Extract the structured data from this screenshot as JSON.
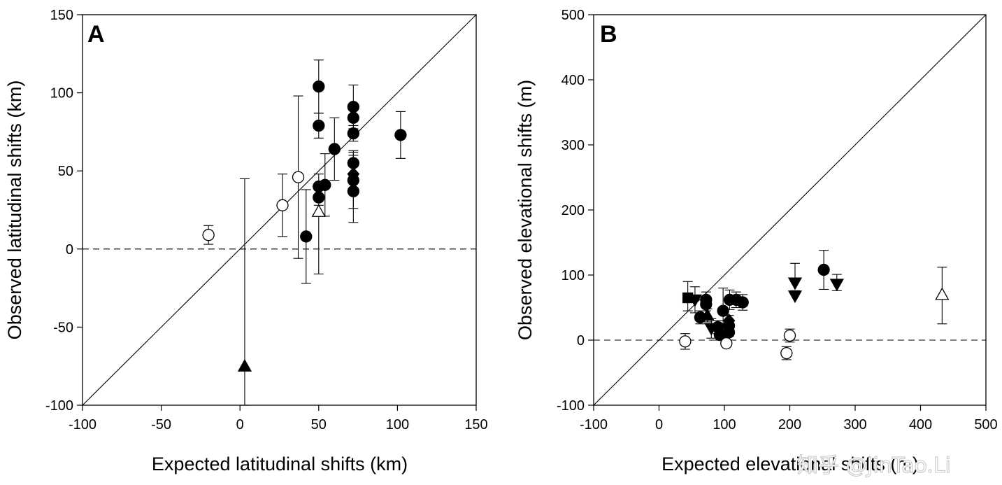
{
  "watermark": "知乎 @JinTao.Li",
  "chart_data": [
    {
      "type": "scatter",
      "panel_label": "A",
      "xlabel": "Expected latitudinal shifts (km)",
      "ylabel": "Observed latitudinal shifts (km)",
      "xlim": [
        -100,
        150
      ],
      "ylim": [
        -100,
        150
      ],
      "xticks": [
        -100,
        -50,
        0,
        50,
        100,
        150
      ],
      "yticks": [
        -100,
        -50,
        0,
        50,
        100,
        150
      ],
      "grid": false,
      "reference_lines": [
        {
          "type": "identity",
          "style": "solid"
        },
        {
          "type": "horizontal",
          "y": 0,
          "style": "dashed"
        }
      ],
      "marker_types": [
        "filled-circle",
        "open-circle",
        "filled-triangle-up",
        "open-triangle-up",
        "filled-diamond"
      ],
      "points": [
        {
          "x": -20,
          "y": 9,
          "marker": "open-circle",
          "err_up": 6,
          "err_down": 6
        },
        {
          "x": 27,
          "y": 28,
          "marker": "open-circle",
          "err_up": 20,
          "err_down": 20
        },
        {
          "x": 37,
          "y": 46,
          "marker": "open-circle",
          "err_up": 52,
          "err_down": 52
        },
        {
          "x": 3,
          "y": -75,
          "marker": "filled-triangle-up",
          "err_up": 120,
          "err_down": 25
        },
        {
          "x": 42,
          "y": 8,
          "marker": "filled-circle",
          "err_up": 30,
          "err_down": 30
        },
        {
          "x": 50,
          "y": 104,
          "marker": "filled-circle",
          "err_up": 17,
          "err_down": 17
        },
        {
          "x": 50,
          "y": 79,
          "marker": "filled-circle",
          "err_up": 8,
          "err_down": 8
        },
        {
          "x": 50,
          "y": 40,
          "marker": "filled-circle",
          "err_up": 8,
          "err_down": 8
        },
        {
          "x": 50,
          "y": 33,
          "marker": "filled-circle",
          "err_up": 5,
          "err_down": 5
        },
        {
          "x": 50,
          "y": 24,
          "marker": "open-triangle-up",
          "err_up": 0,
          "err_down": 40
        },
        {
          "x": 54,
          "y": 41,
          "marker": "filled-circle",
          "err_up": 20,
          "err_down": 20
        },
        {
          "x": 60,
          "y": 64,
          "marker": "filled-circle",
          "err_up": 20,
          "err_down": 20
        },
        {
          "x": 72,
          "y": 91,
          "marker": "filled-circle",
          "err_up": 14,
          "err_down": 14
        },
        {
          "x": 72,
          "y": 84,
          "marker": "filled-circle",
          "err_up": 5,
          "err_down": 5
        },
        {
          "x": 72,
          "y": 74,
          "marker": "filled-circle",
          "err_up": 5,
          "err_down": 5
        },
        {
          "x": 72,
          "y": 55,
          "marker": "filled-circle",
          "err_up": 8,
          "err_down": 8
        },
        {
          "x": 72,
          "y": 48,
          "marker": "filled-diamond",
          "err_up": 12,
          "err_down": 12
        },
        {
          "x": 72,
          "y": 44,
          "marker": "filled-circle",
          "err_up": 18,
          "err_down": 18
        },
        {
          "x": 72,
          "y": 37,
          "marker": "filled-circle",
          "err_up": 10,
          "err_down": 20
        },
        {
          "x": 102,
          "y": 73,
          "marker": "filled-circle",
          "err_up": 15,
          "err_down": 15
        }
      ]
    },
    {
      "type": "scatter",
      "panel_label": "B",
      "xlabel": "Expected elevational shifts (m)",
      "ylabel": "Observed elevational shifts (m)",
      "xlim": [
        -100,
        500
      ],
      "ylim": [
        -100,
        500
      ],
      "xticks": [
        -100,
        0,
        100,
        200,
        300,
        400,
        500
      ],
      "yticks": [
        -100,
        0,
        100,
        200,
        300,
        400,
        500
      ],
      "grid": false,
      "reference_lines": [
        {
          "type": "identity",
          "style": "solid"
        },
        {
          "type": "horizontal",
          "y": 0,
          "style": "dashed"
        }
      ],
      "marker_types": [
        "filled-circle",
        "open-circle",
        "filled-triangle-down",
        "filled-triangle-up",
        "open-triangle-up",
        "filled-square",
        "filled-diamond"
      ],
      "points": [
        {
          "x": 40,
          "y": -2,
          "marker": "open-circle",
          "err_up": 12,
          "err_down": 12
        },
        {
          "x": 44,
          "y": 65,
          "marker": "filled-square",
          "err_up": 25,
          "err_down": 20
        },
        {
          "x": 55,
          "y": 62,
          "marker": "filled-triangle-down",
          "err_up": 20,
          "err_down": 20
        },
        {
          "x": 63,
          "y": 35,
          "marker": "filled-circle",
          "err_up": 10,
          "err_down": 10
        },
        {
          "x": 72,
          "y": 62,
          "marker": "filled-circle",
          "err_up": 12,
          "err_down": 12
        },
        {
          "x": 72,
          "y": 55,
          "marker": "filled-circle",
          "err_up": 10,
          "err_down": 10
        },
        {
          "x": 74,
          "y": 38,
          "marker": "filled-triangle-up",
          "err_up": 10,
          "err_down": 10
        },
        {
          "x": 80,
          "y": 18,
          "marker": "filled-triangle-down",
          "err_up": 15,
          "err_down": 15
        },
        {
          "x": 90,
          "y": 20,
          "marker": "filled-circle",
          "err_up": 10,
          "err_down": 10
        },
        {
          "x": 93,
          "y": 8,
          "marker": "filled-circle",
          "err_up": 8,
          "err_down": 8
        },
        {
          "x": 98,
          "y": 45,
          "marker": "filled-circle",
          "err_up": 35,
          "err_down": 20
        },
        {
          "x": 103,
          "y": -5,
          "marker": "open-circle",
          "err_up": 5,
          "err_down": 5
        },
        {
          "x": 107,
          "y": 30,
          "marker": "filled-diamond",
          "err_up": 8,
          "err_down": 8
        },
        {
          "x": 107,
          "y": 22,
          "marker": "filled-circle",
          "err_up": 6,
          "err_down": 6
        },
        {
          "x": 107,
          "y": 12,
          "marker": "filled-circle",
          "err_up": 6,
          "err_down": 6
        },
        {
          "x": 108,
          "y": 62,
          "marker": "filled-circle",
          "err_up": 15,
          "err_down": 15
        },
        {
          "x": 118,
          "y": 62,
          "marker": "filled-circle",
          "err_up": 12,
          "err_down": 12
        },
        {
          "x": 128,
          "y": 58,
          "marker": "filled-circle",
          "err_up": 12,
          "err_down": 12
        },
        {
          "x": 195,
          "y": -20,
          "marker": "open-circle",
          "err_up": 10,
          "err_down": 10
        },
        {
          "x": 200,
          "y": 7,
          "marker": "open-circle",
          "err_up": 10,
          "err_down": 10
        },
        {
          "x": 208,
          "y": 88,
          "marker": "filled-triangle-down",
          "err_up": 30,
          "err_down": 0
        },
        {
          "x": 208,
          "y": 68,
          "marker": "filled-triangle-down",
          "err_up": 8,
          "err_down": 0
        },
        {
          "x": 252,
          "y": 108,
          "marker": "filled-circle",
          "err_up": 30,
          "err_down": 30
        },
        {
          "x": 272,
          "y": 86,
          "marker": "filled-triangle-down",
          "err_up": 15,
          "err_down": 10
        },
        {
          "x": 433,
          "y": 70,
          "marker": "open-triangle-up",
          "err_up": 42,
          "err_down": 45
        }
      ]
    }
  ]
}
